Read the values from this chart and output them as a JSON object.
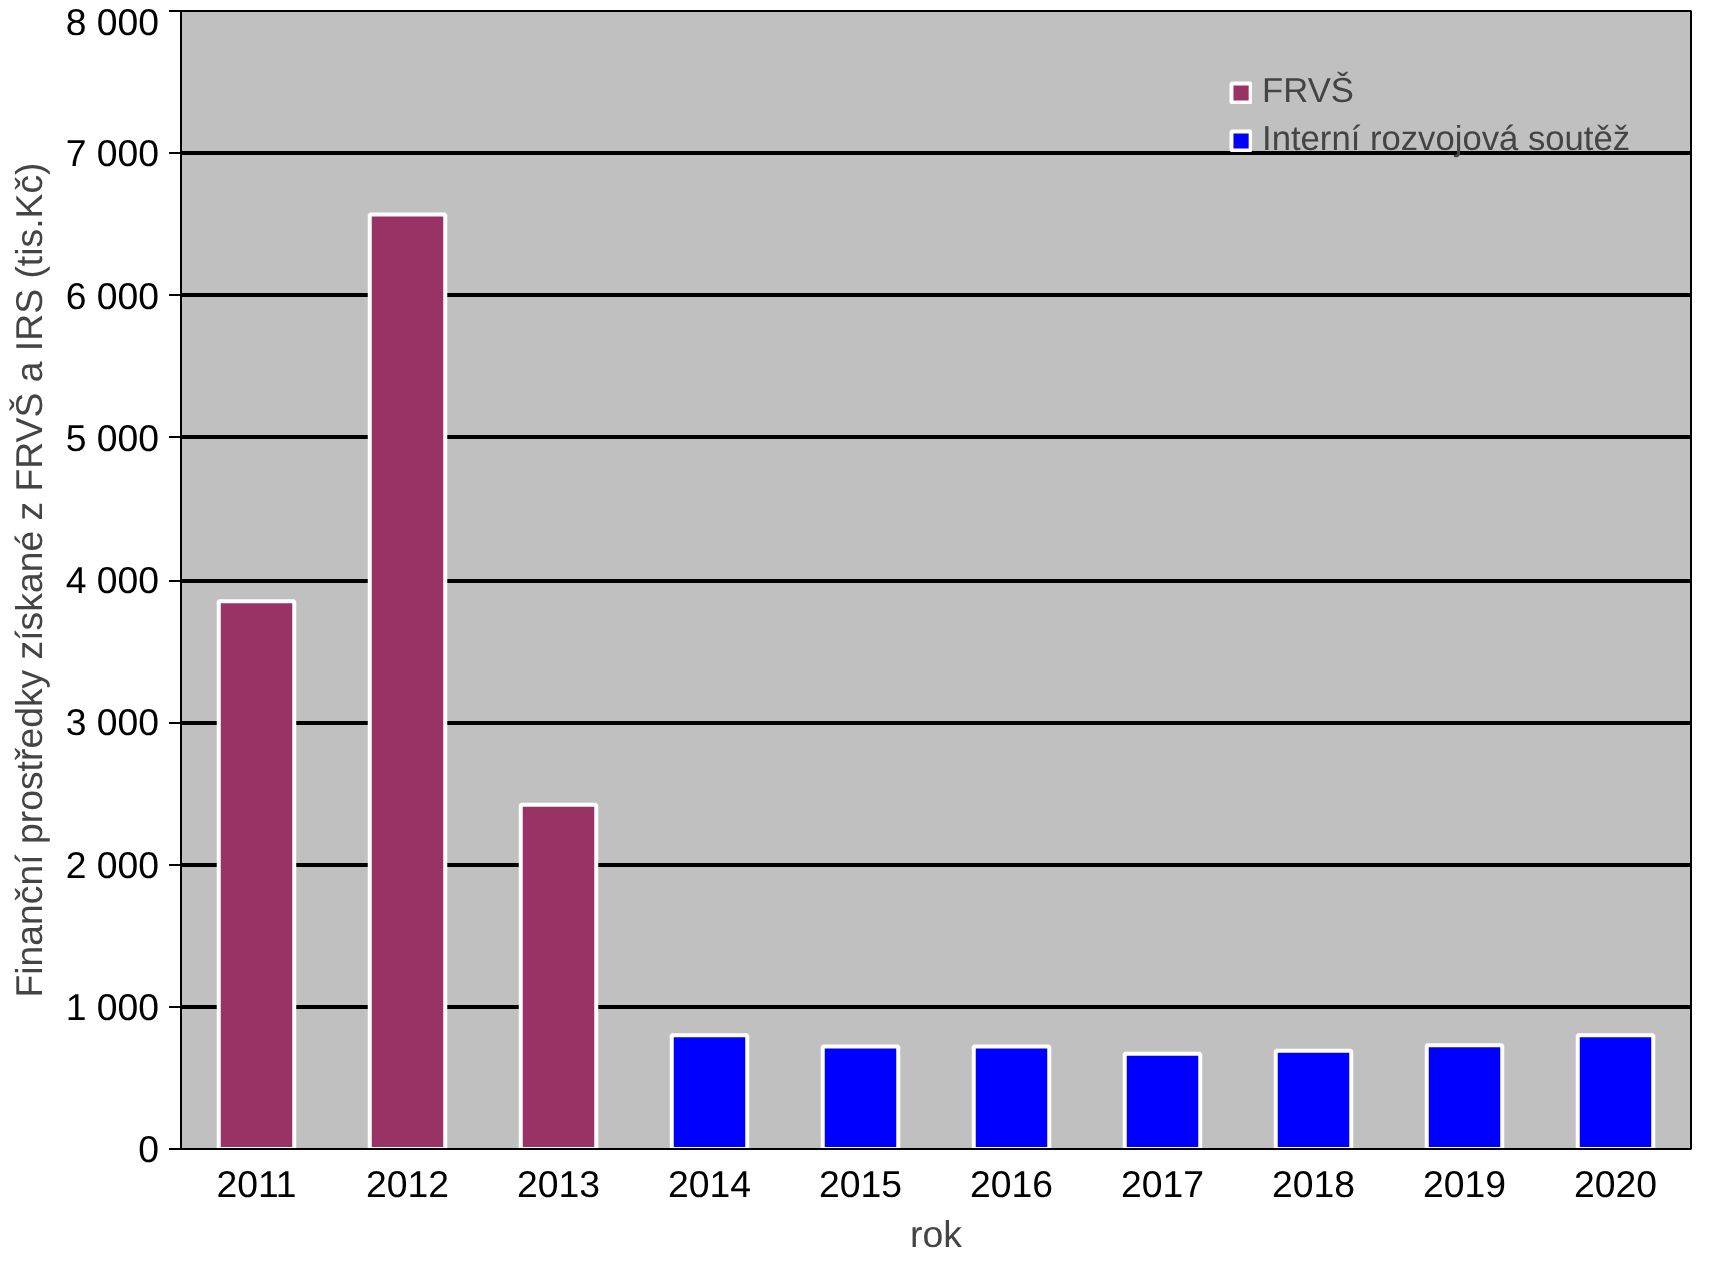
{
  "chart_data": {
    "type": "bar",
    "xlabel": "rok",
    "ylabel": "Finanční prostředky získané z FRVŠ a IRS (tis.Kč)",
    "categories": [
      "2011",
      "2012",
      "2013",
      "2014",
      "2015",
      "2016",
      "2017",
      "2018",
      "2019",
      "2020"
    ],
    "series": [
      {
        "name": "FRVŠ",
        "color": "#993366",
        "values": [
          3850,
          6570,
          2420,
          null,
          null,
          null,
          null,
          null,
          null,
          null
        ]
      },
      {
        "name": "Interní rozvojová soutěž",
        "color": "#0000ff",
        "values": [
          null,
          null,
          null,
          800,
          720,
          720,
          670,
          690,
          730,
          800
        ]
      }
    ],
    "ylim": [
      0,
      8000
    ],
    "yticks": [
      {
        "value": 0,
        "label": "0"
      },
      {
        "value": 1000,
        "label": "1 000"
      },
      {
        "value": 2000,
        "label": "2 000"
      },
      {
        "value": 3000,
        "label": "3 000"
      },
      {
        "value": 4000,
        "label": "4 000"
      },
      {
        "value": 5000,
        "label": "5 000"
      },
      {
        "value": 6000,
        "label": "6 000"
      },
      {
        "value": 7000,
        "label": "7 000"
      },
      {
        "value": 8000,
        "label": "8 000"
      }
    ],
    "grid": "y",
    "legend": "top right"
  }
}
